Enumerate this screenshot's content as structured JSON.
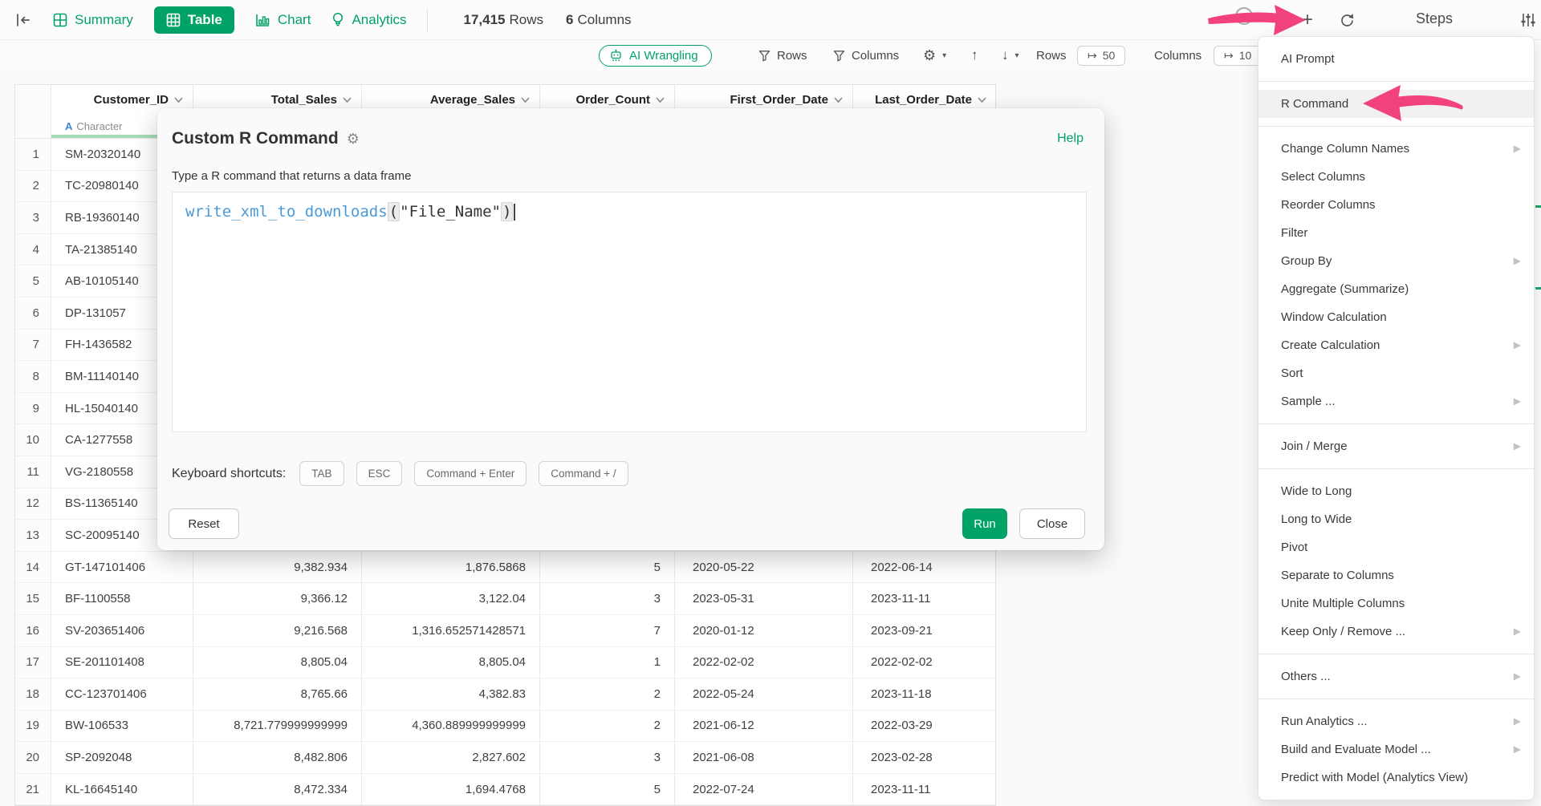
{
  "colors": {
    "accent_green": "#00a266",
    "arrow_pink": "#f2427e",
    "code_blue": "#4b9ad8",
    "type_blue": "#3a87d6",
    "quality_bar_green": "#a6dcb8"
  },
  "topbar": {
    "tabs": [
      {
        "label": "Summary"
      },
      {
        "label": "Table",
        "active": true
      },
      {
        "label": "Chart"
      },
      {
        "label": "Analytics"
      }
    ],
    "row_count": "17,415",
    "rows_word": "Rows",
    "col_count": "6",
    "cols_word": "Columns",
    "steps_title": "Steps"
  },
  "toolbar": {
    "ai_wrangling_label": "AI Wrangling",
    "rows_button": "Rows",
    "columns_button": "Columns",
    "rows_limit_label": "Rows",
    "rows_limit_value": "50",
    "columns_limit_label": "Columns",
    "columns_limit_value": "10"
  },
  "table": {
    "columns": [
      {
        "name": "Customer_ID"
      },
      {
        "name": "Total_Sales"
      },
      {
        "name": "Average_Sales"
      },
      {
        "name": "Order_Count"
      },
      {
        "name": "First_Order_Date"
      },
      {
        "name": "Last_Order_Date"
      }
    ],
    "type_badge": {
      "letter": "A",
      "label": "Character"
    },
    "rows": [
      [
        "SM-20320140",
        "",
        "",
        "",
        "",
        ""
      ],
      [
        "TC-20980140",
        "",
        "",
        "",
        "",
        ""
      ],
      [
        "RB-19360140",
        "",
        "",
        "",
        "",
        ""
      ],
      [
        "TA-21385140",
        "",
        "",
        "",
        "",
        ""
      ],
      [
        "AB-10105140",
        "",
        "",
        "",
        "",
        ""
      ],
      [
        "DP-131057",
        "",
        "",
        "",
        "",
        ""
      ],
      [
        "FH-1436582",
        "",
        "",
        "",
        "",
        ""
      ],
      [
        "BM-11140140",
        "",
        "",
        "",
        "",
        ""
      ],
      [
        "HL-15040140",
        "",
        "",
        "",
        "",
        ""
      ],
      [
        "CA-1277558",
        "",
        "",
        "",
        "",
        ""
      ],
      [
        "VG-2180558",
        "",
        "",
        "",
        "",
        ""
      ],
      [
        "BS-11365140",
        "",
        "",
        "",
        "",
        ""
      ],
      [
        "SC-20095140",
        "",
        "",
        "",
        "",
        ""
      ],
      [
        "GT-147101406",
        "9,382.934",
        "1,876.5868",
        "5",
        "2020-05-22",
        "2022-06-14"
      ],
      [
        "BF-1100558",
        "9,366.12",
        "3,122.04",
        "3",
        "2023-05-31",
        "2023-11-11"
      ],
      [
        "SV-203651406",
        "9,216.568",
        "1,316.652571428571",
        "7",
        "2020-01-12",
        "2023-09-21"
      ],
      [
        "SE-201101408",
        "8,805.04",
        "8,805.04",
        "1",
        "2022-02-02",
        "2022-02-02"
      ],
      [
        "CC-123701406",
        "8,765.66",
        "4,382.83",
        "2",
        "2022-05-24",
        "2023-11-18"
      ],
      [
        "BW-106533",
        "8,721.779999999999",
        "4,360.889999999999",
        "2",
        "2021-06-12",
        "2022-03-29"
      ],
      [
        "SP-2092048",
        "8,482.806",
        "2,827.602",
        "3",
        "2021-06-08",
        "2023-02-28"
      ],
      [
        "KL-16645140",
        "8,472.334",
        "1,694.4768",
        "5",
        "2022-07-24",
        "2023-11-11"
      ]
    ]
  },
  "modal": {
    "title": "Custom R Command",
    "help": "Help",
    "subtitle": "Type a R command that returns a data frame",
    "code": {
      "fn": "write_xml_to_downloads",
      "open": "(",
      "string": "\"File_Name\"",
      "close": ")"
    },
    "shortcuts_label": "Keyboard shortcuts:",
    "shortcuts": [
      "TAB",
      "ESC",
      "Command + Enter",
      "Command + /"
    ],
    "reset": "Reset",
    "run": "Run",
    "close": "Close"
  },
  "menu": {
    "groups": [
      {
        "items": [
          {
            "label": "AI Prompt"
          }
        ]
      },
      {
        "items": [
          {
            "label": "R Command",
            "highlighted": true
          }
        ]
      },
      {
        "items": [
          {
            "label": "Change Column Names",
            "submenu": true
          },
          {
            "label": "Select Columns"
          },
          {
            "label": "Reorder Columns"
          },
          {
            "label": "Filter"
          },
          {
            "label": "Group By",
            "submenu": true
          },
          {
            "label": "Aggregate (Summarize)"
          },
          {
            "label": "Window Calculation"
          },
          {
            "label": "Create Calculation",
            "submenu": true
          },
          {
            "label": "Sort"
          },
          {
            "label": "Sample ...",
            "submenu": true
          }
        ]
      },
      {
        "items": [
          {
            "label": "Join / Merge",
            "submenu": true
          }
        ]
      },
      {
        "items": [
          {
            "label": "Wide to Long"
          },
          {
            "label": "Long to Wide"
          },
          {
            "label": "Pivot"
          },
          {
            "label": "Separate to Columns"
          },
          {
            "label": "Unite Multiple Columns"
          },
          {
            "label": "Keep Only / Remove ...",
            "submenu": true
          }
        ]
      },
      {
        "items": [
          {
            "label": "Others ...",
            "submenu": true
          }
        ]
      },
      {
        "items": [
          {
            "label": "Run Analytics ...",
            "submenu": true
          },
          {
            "label": "Build and Evaluate Model ...",
            "submenu": true
          },
          {
            "label": "Predict with Model (Analytics View)"
          }
        ]
      }
    ]
  }
}
